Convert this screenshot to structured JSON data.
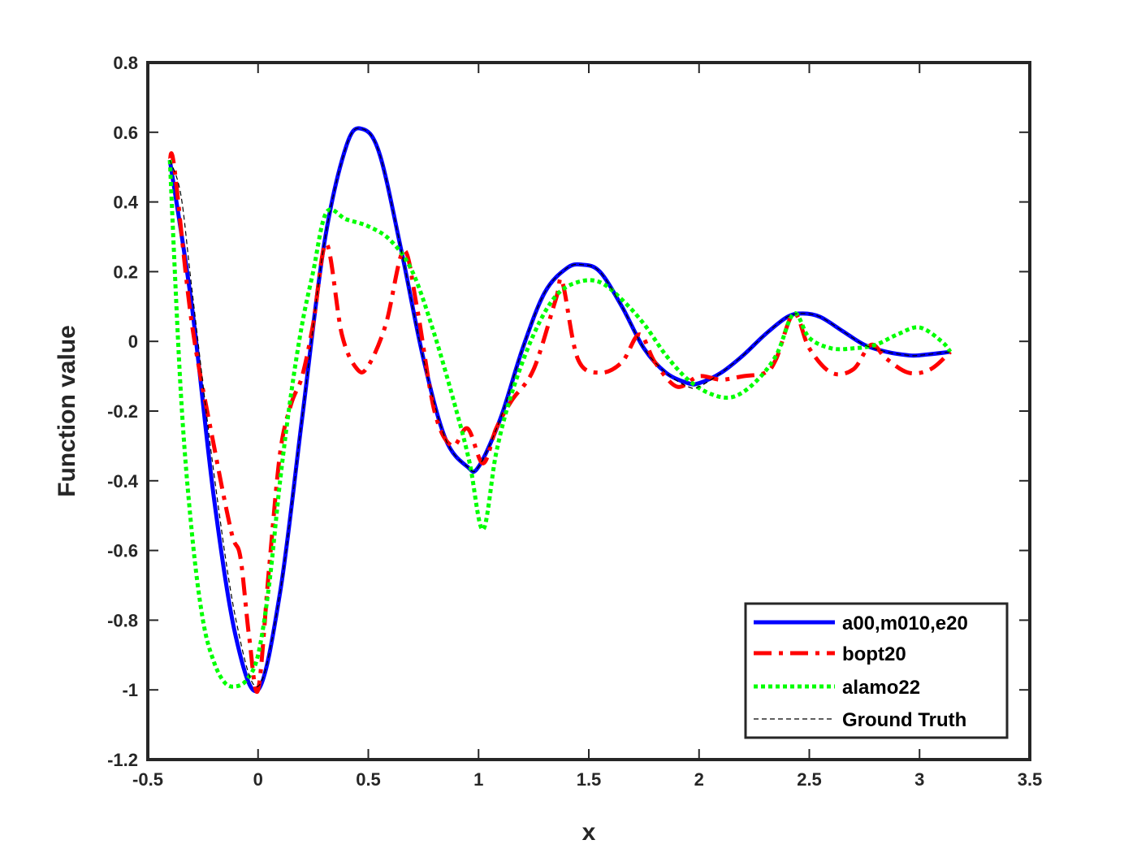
{
  "chart_data": {
    "type": "line",
    "title": "",
    "xlabel": "x",
    "ylabel": "Function value",
    "xlim": [
      -0.5,
      3.5
    ],
    "ylim": [
      -1.2,
      0.8
    ],
    "xticks": [
      -0.5,
      0,
      0.5,
      1,
      1.5,
      2,
      2.5,
      3,
      3.5
    ],
    "xtick_labels": [
      "-0.5",
      "0",
      "0.5",
      "1",
      "1.5",
      "2",
      "2.5",
      "3",
      "3.5"
    ],
    "yticks": [
      -1.2,
      -1,
      -0.8,
      -0.6,
      -0.4,
      -0.2,
      0,
      0.2,
      0.4,
      0.6,
      0.8
    ],
    "ytick_labels": [
      "-1.2",
      "-1",
      "-0.8",
      "-0.6",
      "-0.4",
      "-0.2",
      "0",
      "0.2",
      "0.4",
      "0.6",
      "0.8"
    ],
    "grid": false,
    "legend_position": "bottom-right",
    "series": [
      {
        "name": "a00,m010,e20",
        "color": "#0000ff",
        "style": "solid",
        "x": [
          -0.4,
          -0.3,
          -0.2,
          -0.1,
          0.0,
          0.1,
          0.2,
          0.3,
          0.4,
          0.47,
          0.55,
          0.65,
          0.75,
          0.85,
          0.95,
          1.0,
          1.1,
          1.2,
          1.3,
          1.4,
          1.47,
          1.55,
          1.65,
          1.75,
          1.85,
          1.95,
          2.0,
          2.1,
          2.2,
          2.3,
          2.4,
          2.47,
          2.55,
          2.65,
          2.75,
          2.85,
          2.95,
          3.0,
          3.14
        ],
        "y": [
          0.52,
          0.1,
          -0.45,
          -0.85,
          -1.0,
          -0.72,
          -0.22,
          0.28,
          0.56,
          0.61,
          0.54,
          0.26,
          -0.05,
          -0.28,
          -0.36,
          -0.36,
          -0.22,
          -0.02,
          0.14,
          0.21,
          0.22,
          0.2,
          0.1,
          -0.02,
          -0.09,
          -0.12,
          -0.12,
          -0.09,
          -0.04,
          0.02,
          0.07,
          0.08,
          0.07,
          0.03,
          -0.01,
          -0.03,
          -0.04,
          -0.04,
          -0.03
        ]
      },
      {
        "name": "bopt20",
        "color": "#ff0000",
        "style": "dashdot",
        "x": [
          -0.4,
          -0.38,
          -0.3,
          -0.2,
          -0.12,
          -0.08,
          -0.04,
          0.0,
          0.05,
          0.1,
          0.15,
          0.2,
          0.25,
          0.31,
          0.38,
          0.45,
          0.5,
          0.58,
          0.66,
          0.72,
          0.8,
          0.88,
          0.95,
          1.02,
          1.08,
          1.15,
          1.25,
          1.35,
          1.38,
          1.45,
          1.55,
          1.65,
          1.73,
          1.8,
          1.9,
          2.0,
          2.1,
          2.2,
          2.3,
          2.35,
          2.43,
          2.5,
          2.6,
          2.7,
          2.78,
          2.85,
          2.95,
          3.05,
          3.14
        ],
        "y": [
          0.52,
          0.5,
          0.05,
          -0.3,
          -0.55,
          -0.62,
          -0.85,
          -1.0,
          -0.65,
          -0.32,
          -0.18,
          -0.1,
          0.05,
          0.28,
          0.02,
          -0.08,
          -0.07,
          0.05,
          0.26,
          0.1,
          -0.2,
          -0.3,
          -0.25,
          -0.35,
          -0.25,
          -0.17,
          -0.08,
          0.12,
          0.17,
          -0.05,
          -0.09,
          -0.06,
          0.02,
          -0.06,
          -0.13,
          -0.1,
          -0.11,
          -0.1,
          -0.09,
          -0.05,
          0.08,
          -0.02,
          -0.09,
          -0.08,
          -0.01,
          -0.05,
          -0.09,
          -0.08,
          -0.03
        ]
      },
      {
        "name": "alamo22",
        "color": "#00ff00",
        "style": "dotted",
        "x": [
          -0.4,
          -0.35,
          -0.3,
          -0.25,
          -0.2,
          -0.15,
          -0.1,
          -0.05,
          0.0,
          0.05,
          0.1,
          0.15,
          0.2,
          0.25,
          0.31,
          0.4,
          0.5,
          0.6,
          0.7,
          0.8,
          0.9,
          0.96,
          1.02,
          1.08,
          1.15,
          1.25,
          1.35,
          1.45,
          1.55,
          1.65,
          1.75,
          1.85,
          1.95,
          2.05,
          2.15,
          2.25,
          2.35,
          2.43,
          2.5,
          2.6,
          2.7,
          2.8,
          2.9,
          3.0,
          3.1,
          3.14
        ],
        "y": [
          0.52,
          -0.15,
          -0.55,
          -0.8,
          -0.92,
          -0.98,
          -0.99,
          -0.97,
          -0.9,
          -0.7,
          -0.4,
          -0.15,
          0.05,
          0.2,
          0.37,
          0.35,
          0.33,
          0.29,
          0.2,
          0.02,
          -0.2,
          -0.35,
          -0.54,
          -0.32,
          -0.15,
          0.02,
          0.13,
          0.17,
          0.17,
          0.12,
          0.05,
          -0.04,
          -0.11,
          -0.15,
          -0.16,
          -0.12,
          -0.04,
          0.08,
          0.01,
          -0.02,
          -0.02,
          -0.01,
          0.02,
          0.04,
          0.0,
          -0.03
        ]
      },
      {
        "name": "Ground Truth",
        "color": "#000000",
        "style": "dashed",
        "x": [
          -0.4,
          -0.35,
          -0.3,
          -0.2,
          -0.1,
          0.0,
          0.1,
          0.2,
          0.3,
          0.4,
          0.47,
          0.55,
          0.65,
          0.75,
          0.85,
          0.95,
          1.0,
          1.1,
          1.2,
          1.3,
          1.4,
          1.47,
          1.55,
          1.65,
          1.75,
          1.85,
          1.95,
          2.0,
          2.1,
          2.2,
          2.3,
          2.4,
          2.47,
          2.55,
          2.65,
          2.75,
          2.85,
          2.95,
          3.0,
          3.14
        ],
        "y": [
          0.52,
          0.42,
          0.15,
          -0.38,
          -0.8,
          -0.99,
          -0.72,
          -0.22,
          0.28,
          0.56,
          0.61,
          0.54,
          0.26,
          -0.05,
          -0.28,
          -0.36,
          -0.36,
          -0.22,
          -0.02,
          0.14,
          0.21,
          0.22,
          0.2,
          0.1,
          -0.02,
          -0.09,
          -0.13,
          -0.13,
          -0.09,
          -0.04,
          0.02,
          0.07,
          0.08,
          0.07,
          0.03,
          -0.01,
          -0.03,
          -0.04,
          -0.04,
          -0.03
        ]
      }
    ]
  }
}
